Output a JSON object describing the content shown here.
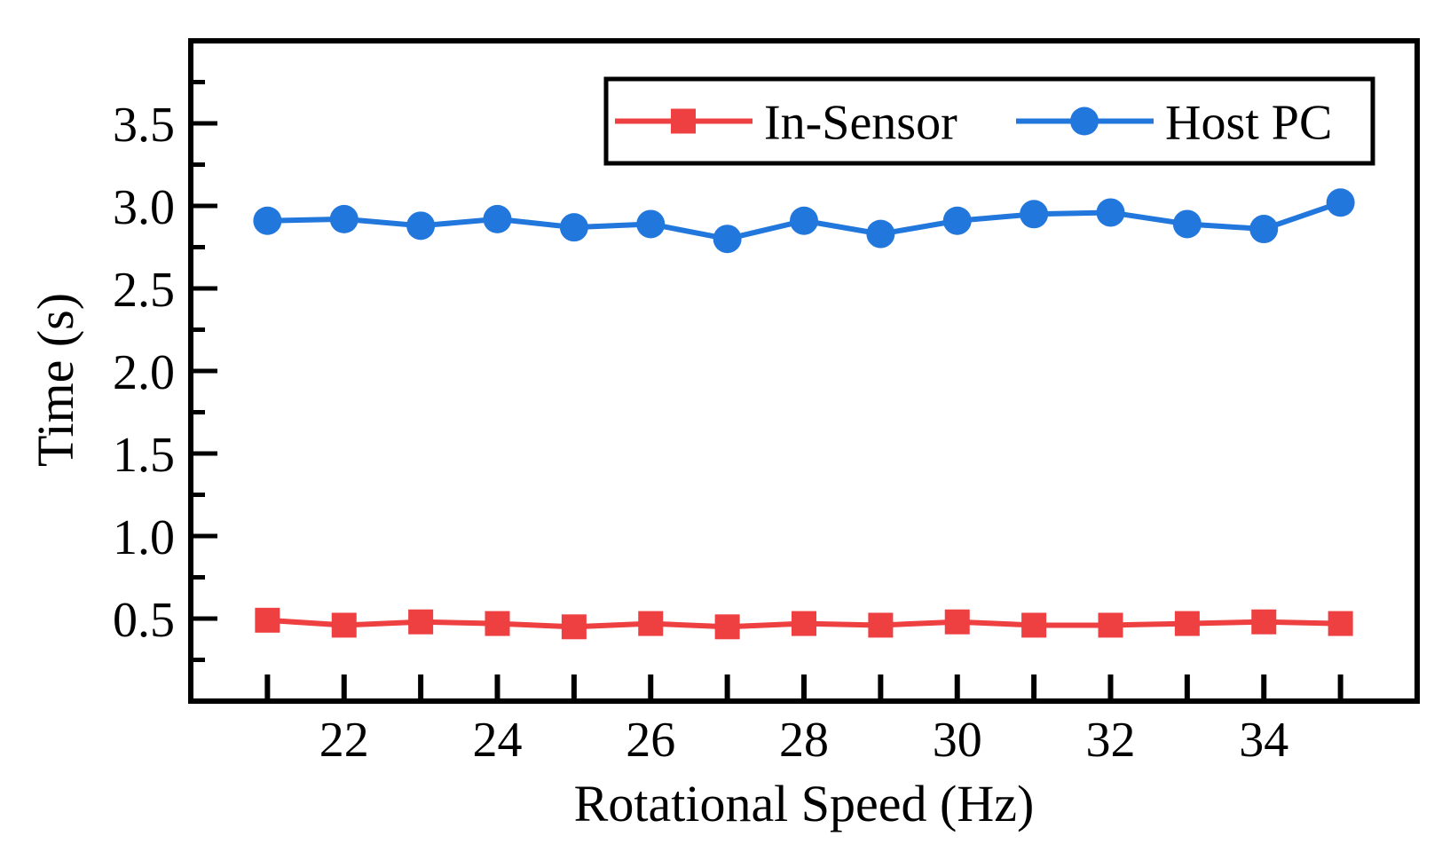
{
  "chart_data": {
    "type": "line",
    "title": "",
    "xlabel": "Rotational Speed (Hz)",
    "ylabel": "Time (s)",
    "x": [
      21,
      22,
      23,
      24,
      25,
      26,
      27,
      28,
      29,
      30,
      31,
      32,
      33,
      34,
      35
    ],
    "xlim": [
      20,
      36
    ],
    "ylim": [
      0.0,
      4.0
    ],
    "xticks": [
      22,
      24,
      26,
      28,
      30,
      32,
      34
    ],
    "xtick_labels": [
      "22",
      "24",
      "26",
      "28",
      "30",
      "32",
      "34"
    ],
    "yticks": [
      0.5,
      1.0,
      1.5,
      2.0,
      2.5,
      3.0,
      3.5
    ],
    "ytick_labels": [
      "0.5",
      "1.0",
      "1.5",
      "2.0",
      "2.5",
      "3.0",
      "3.5"
    ],
    "legend_position": "top-right",
    "series": [
      {
        "name": "In-Sensor",
        "marker": "square",
        "color": "#EE3F41",
        "values": [
          0.49,
          0.46,
          0.48,
          0.47,
          0.45,
          0.47,
          0.45,
          0.47,
          0.46,
          0.48,
          0.46,
          0.46,
          0.47,
          0.48,
          0.47
        ]
      },
      {
        "name": "Host PC",
        "marker": "circle",
        "color": "#2277DD",
        "values": [
          2.91,
          2.92,
          2.88,
          2.92,
          2.87,
          2.89,
          2.8,
          2.91,
          2.83,
          2.91,
          2.95,
          2.96,
          2.89,
          2.86,
          3.02
        ]
      }
    ]
  }
}
